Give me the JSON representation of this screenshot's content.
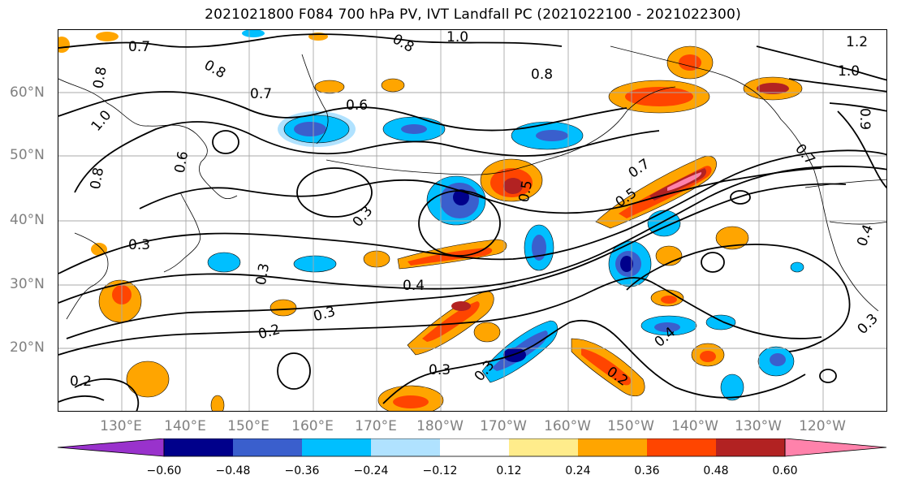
{
  "title": "2021021800 F084 700 hPa PV, IVT Landfall PC (2021022100 - 2021022300)",
  "lat_labels": [
    "60°N",
    "50°N",
    "40°N",
    "30°N",
    "20°N"
  ],
  "lon_labels": [
    "130°E",
    "140°E",
    "150°E",
    "160°E",
    "170°E",
    "180°W",
    "170°W",
    "160°W",
    "150°W",
    "140°W",
    "130°W",
    "120°W"
  ],
  "contour_labels": [
    "0.7",
    "0.8",
    "0.6",
    "0.8",
    "0.8",
    "1.0",
    "0.7",
    "0.6",
    "0.8",
    "0.8",
    "1.0",
    "1.2",
    "1.0",
    "0.9",
    "0.7",
    "0.7",
    "0.5",
    "0.5",
    "0.3",
    "0.3",
    "0.3",
    "0.4",
    "0.3",
    "0.2",
    "0.3",
    "0.3",
    "0.4",
    "0.2",
    "0.3",
    "0.2",
    "0.4"
  ],
  "colorbar": {
    "tick_labels": [
      "−0.60",
      "−0.48",
      "−0.36",
      "−0.24",
      "−0.12",
      "0.12",
      "0.24",
      "0.36",
      "0.48",
      "0.60"
    ],
    "colors": [
      "#9932cc",
      "#00008b",
      "#3a5fcd",
      "#00bfff",
      "#b0e2ff",
      "#ffffff",
      "#ffec8b",
      "#ffa500",
      "#ff4500",
      "#b22222",
      "#ff82ab"
    ]
  },
  "shading_colors": {
    "neg_strong": "#00008b",
    "neg_mid": "#3a5fcd",
    "neg_light": "#00bfff",
    "neg_pale": "#b0e2ff",
    "pos_pale": "#ffec8b",
    "pos_light": "#ffa500",
    "pos_mid": "#ff4500",
    "pos_strong": "#b22222",
    "pos_extreme": "#ff82ab"
  }
}
